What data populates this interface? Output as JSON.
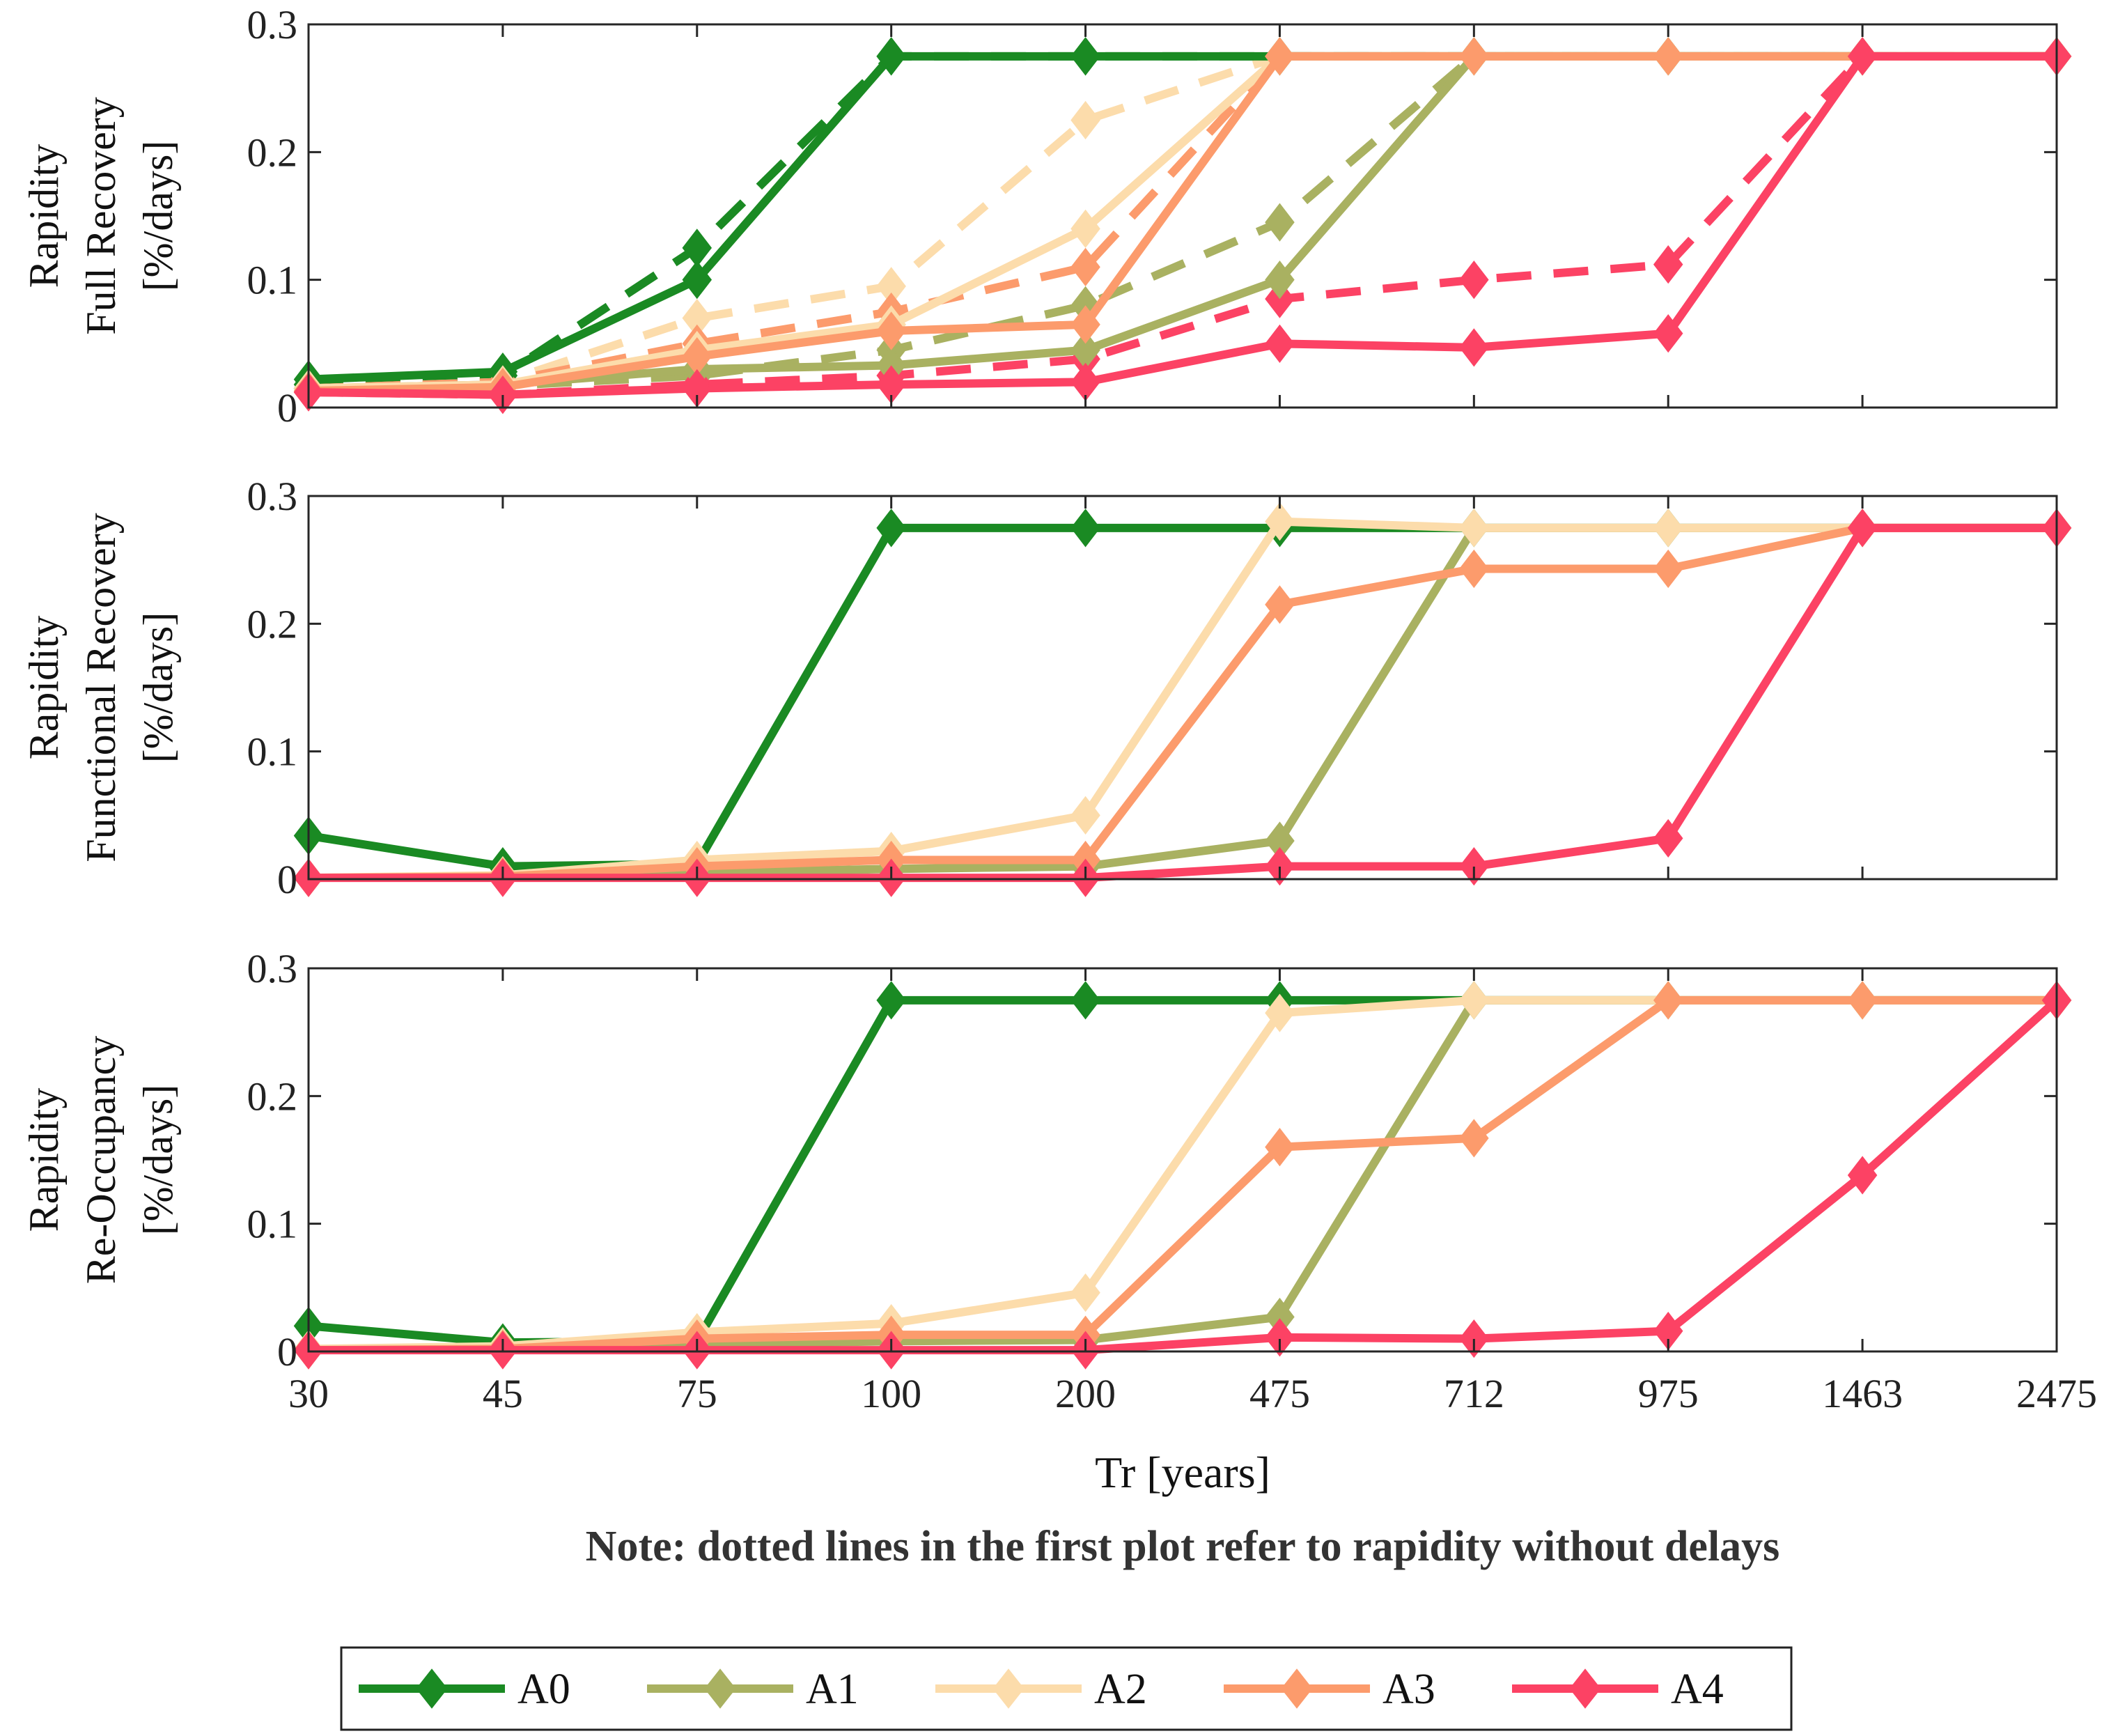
{
  "chart_data": {
    "type": "line",
    "x_label": "Tr [years]",
    "x_categories": [
      "30",
      "45",
      "75",
      "100",
      "200",
      "475",
      "712",
      "975",
      "1463",
      "2475"
    ],
    "note": "Note: dotted lines in the first plot refer to rapidity without delays",
    "legend": [
      {
        "name": "A0",
        "color": "#1a8a23"
      },
      {
        "name": "A1",
        "color": "#a9b161"
      },
      {
        "name": "A2",
        "color": "#fcdcab"
      },
      {
        "name": "A3",
        "color": "#fc9b6c"
      },
      {
        "name": "A4",
        "color": "#fc4264"
      }
    ],
    "panels": [
      {
        "ylabel_line1": "Rapidity",
        "ylabel_line2": "Full Recovery",
        "ylabel_line3": "[%/days]",
        "ylim": [
          0,
          0.3
        ],
        "yticks": [
          "0",
          "0.1",
          "0.2",
          "0.3"
        ],
        "series": [
          {
            "name": "A0",
            "style": "solid",
            "values": [
              0.022,
              0.028,
              0.1,
              0.275,
              0.275,
              0.275,
              0.275,
              0.275,
              0.275,
              0.275
            ]
          },
          {
            "name": "A1",
            "style": "solid",
            "values": [
              0.015,
              0.018,
              0.03,
              0.033,
              0.045,
              0.1,
              0.275,
              0.275,
              0.275,
              0.275
            ]
          },
          {
            "name": "A2",
            "style": "solid",
            "values": [
              0.015,
              0.018,
              0.045,
              0.065,
              0.14,
              0.275,
              0.275,
              0.275,
              0.275,
              0.275
            ]
          },
          {
            "name": "A3",
            "style": "solid",
            "values": [
              0.013,
              0.016,
              0.04,
              0.06,
              0.065,
              0.275,
              0.275,
              0.275,
              0.275,
              0.275
            ]
          },
          {
            "name": "A4",
            "style": "solid",
            "values": [
              0.012,
              0.01,
              0.015,
              0.018,
              0.02,
              0.05,
              0.047,
              0.058,
              0.275,
              0.275
            ]
          },
          {
            "name": "A0",
            "style": "dashed",
            "values": [
              0.018,
              0.025,
              0.125,
              0.275,
              0.275,
              0.275,
              0.275,
              0.275,
              0.275,
              0.275
            ]
          },
          {
            "name": "A1",
            "style": "dashed",
            "values": [
              0.015,
              0.017,
              0.025,
              0.045,
              0.08,
              0.145,
              0.275,
              0.275,
              0.275,
              0.275
            ]
          },
          {
            "name": "A2",
            "style": "dashed",
            "values": [
              0.015,
              0.02,
              0.07,
              0.095,
              0.225,
              0.275,
              0.275,
              0.275,
              0.275,
              0.275
            ]
          },
          {
            "name": "A3",
            "style": "dashed",
            "values": [
              0.015,
              0.02,
              0.05,
              0.075,
              0.11,
              0.275,
              0.275,
              0.275,
              0.275,
              0.275
            ]
          },
          {
            "name": "A4",
            "style": "dashed",
            "values": [
              0.012,
              0.01,
              0.018,
              0.025,
              0.038,
              0.085,
              0.1,
              0.112,
              0.275,
              0.275
            ]
          }
        ]
      },
      {
        "ylabel_line1": "Rapidity",
        "ylabel_line2": "Functional Recovery",
        "ylabel_line3": "[%/days]",
        "ylim": [
          0,
          0.3
        ],
        "yticks": [
          "0",
          "0.1",
          "0.2",
          "0.3"
        ],
        "series": [
          {
            "name": "A0",
            "style": "solid",
            "values": [
              0.034,
              0.01,
              0.012,
              0.275,
              0.275,
              0.275,
              0.275,
              0.275,
              0.275,
              0.275
            ]
          },
          {
            "name": "A1",
            "style": "solid",
            "values": [
              0.001,
              0.002,
              0.005,
              0.008,
              0.01,
              0.03,
              0.275,
              0.275,
              0.275,
              0.275
            ]
          },
          {
            "name": "A2",
            "style": "solid",
            "values": [
              0.001,
              0.003,
              0.015,
              0.022,
              0.05,
              0.28,
              0.275,
              0.275,
              0.275,
              0.275
            ]
          },
          {
            "name": "A3",
            "style": "solid",
            "values": [
              0.001,
              0.002,
              0.01,
              0.015,
              0.015,
              0.215,
              0.243,
              0.243,
              0.275,
              0.275
            ]
          },
          {
            "name": "A4",
            "style": "solid",
            "values": [
              0.001,
              0.001,
              0.001,
              0.001,
              0.001,
              0.01,
              0.01,
              0.032,
              0.275,
              0.275
            ]
          }
        ]
      },
      {
        "ylabel_line1": "Rapidity",
        "ylabel_line2": "Re-Occupancy",
        "ylabel_line3": "[%/days]",
        "ylim": [
          0,
          0.3
        ],
        "yticks": [
          "0",
          "0.1",
          "0.2",
          "0.3"
        ],
        "series": [
          {
            "name": "A0",
            "style": "solid",
            "values": [
              0.02,
              0.007,
              0.008,
              0.275,
              0.275,
              0.275,
              0.275,
              0.275,
              0.275,
              0.275
            ]
          },
          {
            "name": "A1",
            "style": "solid",
            "values": [
              0.001,
              0.002,
              0.006,
              0.008,
              0.009,
              0.027,
              0.275,
              0.275,
              0.275,
              0.275
            ]
          },
          {
            "name": "A2",
            "style": "solid",
            "values": [
              0.002,
              0.004,
              0.015,
              0.022,
              0.046,
              0.265,
              0.275,
              0.275,
              0.275,
              0.275
            ]
          },
          {
            "name": "A3",
            "style": "solid",
            "values": [
              0.001,
              0.002,
              0.01,
              0.013,
              0.013,
              0.16,
              0.167,
              0.275,
              0.275,
              0.275
            ]
          },
          {
            "name": "A4",
            "style": "solid",
            "values": [
              0.001,
              0.001,
              0.001,
              0.001,
              0.001,
              0.011,
              0.01,
              0.016,
              0.138,
              0.275
            ]
          }
        ]
      }
    ]
  }
}
